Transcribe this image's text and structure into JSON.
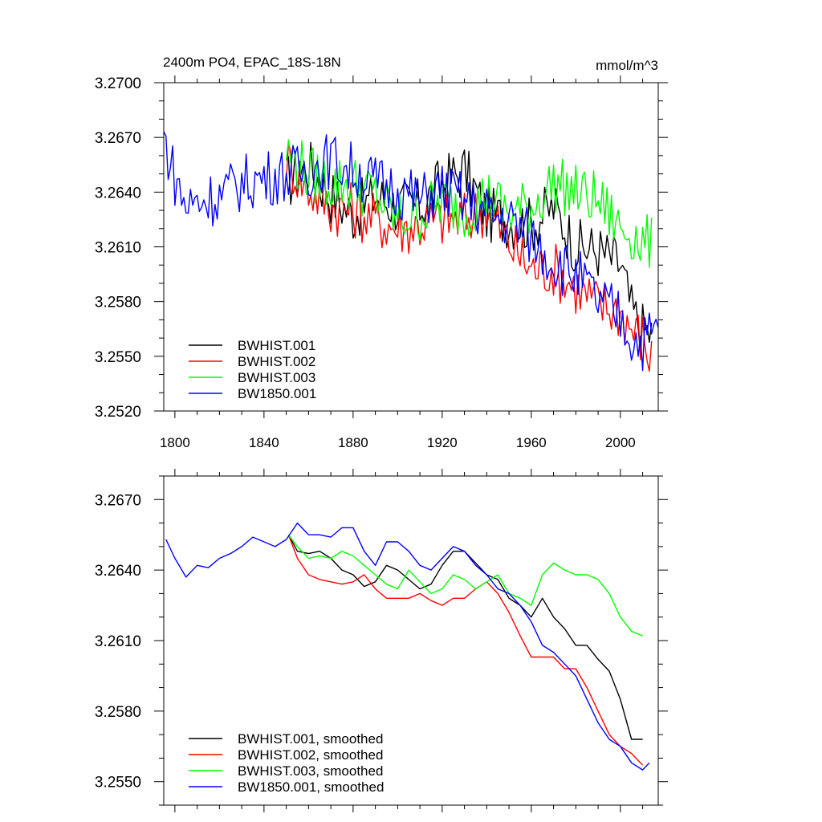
{
  "chart_data": [
    {
      "type": "line",
      "title": "2400m PO4, EPAC_18S-18N",
      "units": "mmol/m^3",
      "xlim": [
        1795,
        2017
      ],
      "ylim": [
        3.252,
        3.27
      ],
      "x_ticks": [
        1800,
        1840,
        1880,
        1920,
        1960,
        2000
      ],
      "y_ticks": [
        3.252,
        3.255,
        3.258,
        3.261,
        3.264,
        3.267,
        3.27
      ],
      "y_tick_labels": [
        "3.2520",
        "3.2550",
        "3.2580",
        "3.2610",
        "3.2640",
        "3.2670",
        "3.2700"
      ],
      "legend_position": "bottom-left",
      "series": [
        {
          "name": "BWHIST.001",
          "color": "#000000",
          "x": [
            1850,
            1860,
            1870,
            1880,
            1890,
            1900,
            1910,
            1920,
            1930,
            1940,
            1950,
            1960,
            1970,
            1980,
            1990,
            2000,
            2005,
            2010,
            2014
          ],
          "y": [
            3.2645,
            3.2655,
            3.2638,
            3.2628,
            3.2638,
            3.2632,
            3.2632,
            3.2645,
            3.2652,
            3.2628,
            3.2625,
            3.2622,
            3.2632,
            3.261,
            3.2608,
            3.26,
            3.2575,
            3.2565,
            3.2562
          ]
        },
        {
          "name": "BWHIST.002",
          "color": "#ff0000",
          "x": [
            1850,
            1860,
            1870,
            1880,
            1890,
            1900,
            1910,
            1920,
            1930,
            1940,
            1950,
            1960,
            1970,
            1980,
            1990,
            2000,
            2005,
            2010,
            2014
          ],
          "y": [
            3.2658,
            3.2642,
            3.2632,
            3.263,
            3.2625,
            3.262,
            3.2622,
            3.2625,
            3.2625,
            3.2632,
            3.2612,
            3.2598,
            3.2598,
            3.2588,
            3.2578,
            3.2575,
            3.2565,
            3.256,
            3.2548
          ]
        },
        {
          "name": "BWHIST.003",
          "color": "#00ff00",
          "x": [
            1850,
            1860,
            1870,
            1880,
            1890,
            1900,
            1910,
            1920,
            1930,
            1940,
            1950,
            1960,
            1970,
            1980,
            1990,
            2000,
            2005,
            2010,
            2014
          ],
          "y": [
            3.2662,
            3.265,
            3.2645,
            3.2645,
            3.2638,
            3.2625,
            3.2628,
            3.2635,
            3.263,
            3.2638,
            3.2628,
            3.2632,
            3.2645,
            3.264,
            3.2635,
            3.262,
            3.2618,
            3.2612,
            3.2612
          ]
        },
        {
          "name": "BW1850.001",
          "color": "#0000ff",
          "x": [
            1795,
            1800,
            1805,
            1810,
            1820,
            1830,
            1840,
            1850,
            1860,
            1870,
            1880,
            1890,
            1900,
            1910,
            1920,
            1930,
            1940,
            1950,
            1960,
            1970,
            1980,
            1990,
            2000,
            2005,
            2010,
            2017
          ],
          "y": [
            3.267,
            3.2648,
            3.2632,
            3.2635,
            3.2638,
            3.2645,
            3.2648,
            3.265,
            3.2652,
            3.2658,
            3.2652,
            3.2645,
            3.2642,
            3.2635,
            3.2642,
            3.2635,
            3.2628,
            3.2625,
            3.2615,
            3.2602,
            3.2595,
            3.258,
            3.2572,
            3.256,
            3.2558,
            3.2565
          ]
        }
      ]
    },
    {
      "type": "line",
      "xlim": [
        1795,
        2017
      ],
      "ylim": [
        3.254,
        3.268
      ],
      "x_ticks": [
        1800,
        1840,
        1880,
        1920,
        1960,
        2000
      ],
      "y_ticks": [
        3.255,
        3.258,
        3.261,
        3.264,
        3.267
      ],
      "y_tick_labels": [
        "3.2550",
        "3.2580",
        "3.2610",
        "3.2640",
        "3.2670"
      ],
      "legend_position": "bottom-left",
      "series": [
        {
          "name": "BWHIST.001, smoothed",
          "color": "#000000",
          "x": [
            1851,
            1855,
            1860,
            1865,
            1870,
            1875,
            1880,
            1885,
            1890,
            1895,
            1900,
            1905,
            1910,
            1915,
            1920,
            1925,
            1930,
            1935,
            1940,
            1945,
            1950,
            1955,
            1960,
            1965,
            1970,
            1975,
            1980,
            1985,
            1990,
            1995,
            2000,
            2005,
            2010
          ],
          "y": [
            3.2655,
            3.2648,
            3.2647,
            3.2648,
            3.2645,
            3.264,
            3.2638,
            3.2633,
            3.2635,
            3.2642,
            3.264,
            3.2636,
            3.2632,
            3.2634,
            3.2642,
            3.2648,
            3.2648,
            3.2643,
            3.2638,
            3.2636,
            3.2628,
            3.2625,
            3.262,
            3.2628,
            3.262,
            3.2615,
            3.2608,
            3.2608,
            3.2602,
            3.2597,
            3.2585,
            3.2568,
            3.2568
          ]
        },
        {
          "name": "BWHIST.002, smoothed",
          "color": "#ff0000",
          "x": [
            1851,
            1855,
            1860,
            1865,
            1870,
            1875,
            1880,
            1885,
            1890,
            1895,
            1900,
            1905,
            1910,
            1915,
            1920,
            1925,
            1930,
            1935,
            1940,
            1945,
            1950,
            1955,
            1960,
            1965,
            1970,
            1975,
            1980,
            1985,
            1990,
            1995,
            2000,
            2005,
            2010
          ],
          "y": [
            3.2655,
            3.2645,
            3.2638,
            3.2636,
            3.2635,
            3.2634,
            3.2635,
            3.2638,
            3.2632,
            3.2628,
            3.2628,
            3.2628,
            3.263,
            3.2627,
            3.2625,
            3.2628,
            3.2628,
            3.2632,
            3.2635,
            3.263,
            3.2622,
            3.2612,
            3.2603,
            3.2603,
            3.2603,
            3.2598,
            3.2598,
            3.259,
            3.258,
            3.257,
            3.2565,
            3.2562,
            3.2557
          ]
        },
        {
          "name": "BWHIST.003, smoothed",
          "color": "#00ff00",
          "x": [
            1851,
            1855,
            1860,
            1865,
            1870,
            1875,
            1880,
            1885,
            1890,
            1895,
            1900,
            1905,
            1910,
            1915,
            1920,
            1925,
            1930,
            1935,
            1940,
            1945,
            1950,
            1955,
            1960,
            1965,
            1970,
            1975,
            1980,
            1985,
            1990,
            1995,
            2000,
            2005,
            2010
          ],
          "y": [
            3.2655,
            3.265,
            3.2645,
            3.2646,
            3.2645,
            3.2648,
            3.2646,
            3.2642,
            3.2638,
            3.2634,
            3.2632,
            3.264,
            3.2635,
            3.263,
            3.2632,
            3.2638,
            3.2636,
            3.2632,
            3.2635,
            3.2638,
            3.263,
            3.2628,
            3.2625,
            3.2638,
            3.2643,
            3.264,
            3.2638,
            3.2638,
            3.2636,
            3.263,
            3.262,
            3.2614,
            3.2612
          ]
        },
        {
          "name": "BW1850.001, smoothed",
          "color": "#0000ff",
          "x": [
            1796,
            1800,
            1805,
            1810,
            1815,
            1820,
            1825,
            1830,
            1835,
            1840,
            1845,
            1850,
            1855,
            1860,
            1865,
            1870,
            1875,
            1880,
            1885,
            1890,
            1895,
            1900,
            1905,
            1910,
            1915,
            1920,
            1925,
            1930,
            1935,
            1940,
            1945,
            1950,
            1955,
            1960,
            1965,
            1970,
            1975,
            1980,
            1985,
            1990,
            1995,
            2000,
            2005,
            2010,
            2013
          ],
          "y": [
            3.2653,
            3.2645,
            3.2637,
            3.2642,
            3.2641,
            3.2645,
            3.2647,
            3.265,
            3.2654,
            3.2652,
            3.265,
            3.2653,
            3.266,
            3.2655,
            3.2655,
            3.2654,
            3.2658,
            3.2658,
            3.2648,
            3.2642,
            3.2652,
            3.2652,
            3.2648,
            3.2642,
            3.264,
            3.2645,
            3.265,
            3.2648,
            3.2642,
            3.2638,
            3.2632,
            3.263,
            3.2625,
            3.2618,
            3.2608,
            3.2605,
            3.26,
            3.2595,
            3.2585,
            3.2575,
            3.2568,
            3.2565,
            3.2558,
            3.2555,
            3.2558
          ]
        }
      ]
    }
  ]
}
